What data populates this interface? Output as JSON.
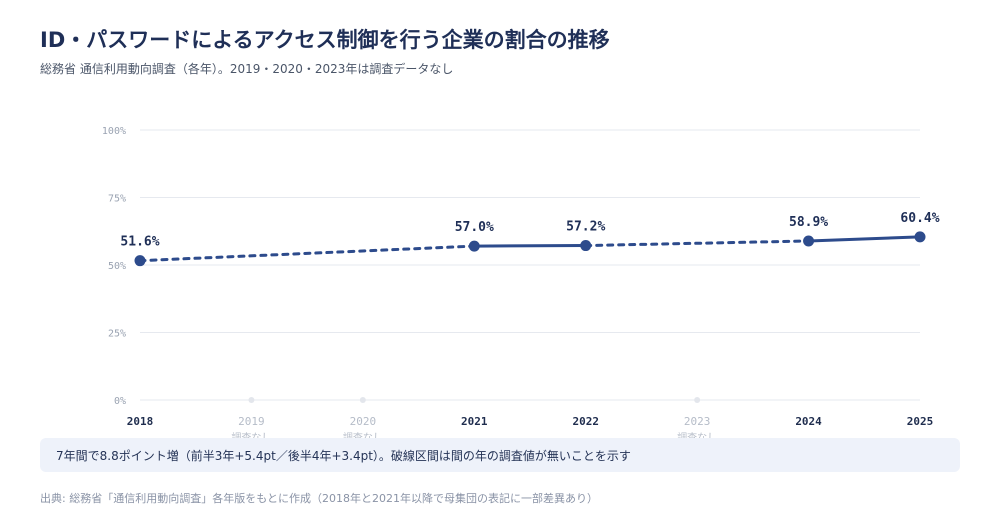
{
  "title": "ID・パスワードによるアクセス制御を行う企業の割合の推移",
  "subtitle": "総務省 通信利用動向調査（各年）。2019・2020・2023年は調査データなし",
  "note": "7年間で8.8ポイント増（前半3年+5.4pt／後半4年+3.4pt）。破線区間は間の年の調査値が無いことを示す",
  "source": "出典: 総務省「通信利用動向調査」各年版をもとに作成（2018年と2021年以降で母集団の表記に一部差異あり）",
  "colors": {
    "line": "#2d4b8c",
    "grid": "#e6e9ef",
    "tick": "#9aa3b2",
    "missing": "#b5bcc8"
  },
  "chart_data": {
    "type": "line",
    "categories": [
      "2018",
      "2019",
      "2020",
      "2021",
      "2022",
      "2023",
      "2024",
      "2025"
    ],
    "values": [
      51.6,
      null,
      null,
      57.0,
      57.2,
      null,
      58.9,
      60.4
    ],
    "data_labels": [
      "51.6%",
      "",
      "",
      "57.0%",
      "57.2%",
      "",
      "58.9%",
      "60.4%"
    ],
    "missing_label": "調査なし",
    "yticks": [
      "0%",
      "25%",
      "50%",
      "75%",
      "100%"
    ],
    "ylim": [
      0,
      100
    ],
    "xlabel": "",
    "ylabel": "",
    "grid": true
  }
}
